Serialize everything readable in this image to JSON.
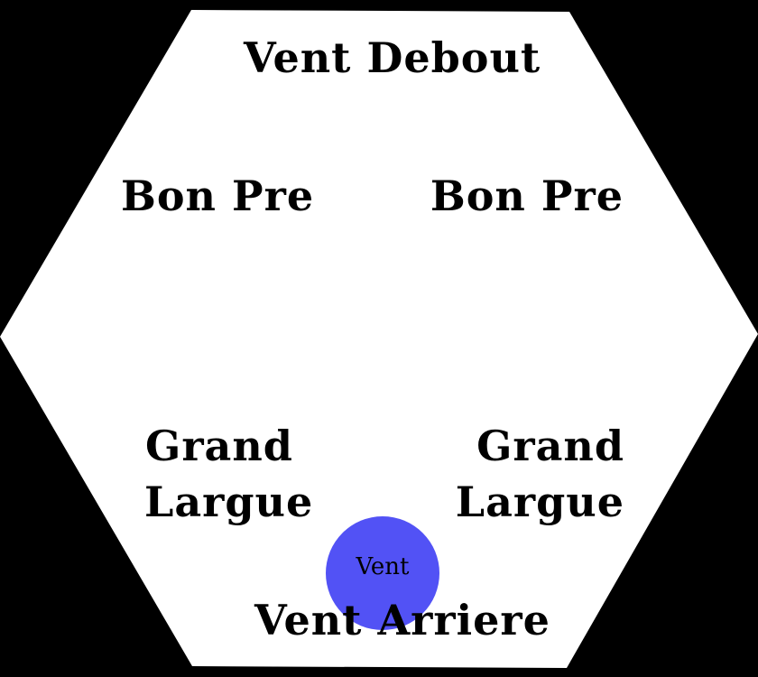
{
  "colors": {
    "background": "#000000",
    "hexagon": "#ffffff",
    "text": "#000000",
    "wind_marker": "#5252f5"
  },
  "zones": {
    "top": "Vent Debout",
    "upper_left": "Bon Pre",
    "upper_right": "Bon Pre",
    "lower_left": [
      "Grand",
      "Largue"
    ],
    "lower_right": [
      "Grand",
      "Largue"
    ],
    "bottom": "Vent Arriere"
  },
  "wind_marker": {
    "label": "Vent"
  }
}
